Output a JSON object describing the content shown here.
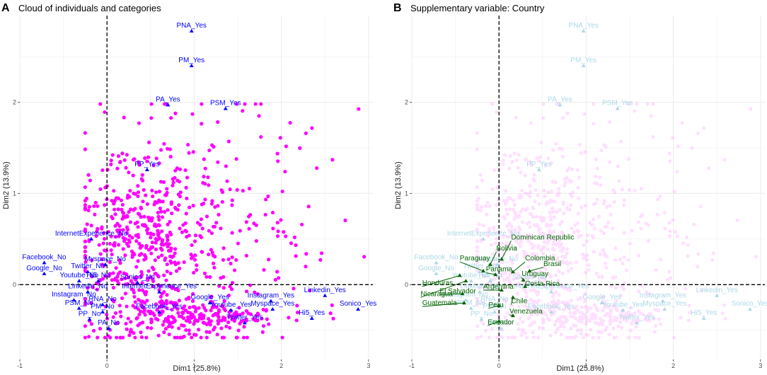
{
  "colors": {
    "individual": "#ff00ff",
    "category": "#0000ff",
    "category_faded": "#add8e6",
    "country": "#006400",
    "grid": "#ebebeb",
    "axis_line": "#000000"
  },
  "chart_data": [
    {
      "type": "scatter",
      "panel_letter": "A",
      "title": "Cloud of individuals and categories",
      "xlabel": "Dim1 (25.8%)",
      "ylabel": "Dim2 (13.9%)",
      "xlim": [
        -1.0,
        3.05
      ],
      "ylim": [
        -0.82,
        2.95
      ],
      "xticks": [
        -1,
        0,
        1,
        2,
        3
      ],
      "yticks": [
        0,
        1,
        2
      ],
      "xtick_labels": [
        "-1",
        "0",
        "1",
        "2",
        "3"
      ],
      "ytick_labels": [
        "0",
        "1",
        "2"
      ],
      "individuals_opacity": 1.0,
      "category_color": "#0000ff",
      "categories": [
        {
          "label": "PNA_Yes",
          "x": 0.97,
          "y": 2.78
        },
        {
          "label": "PM_Yes",
          "x": 0.97,
          "y": 2.4
        },
        {
          "label": "PA_Yes",
          "x": 0.7,
          "y": 1.97
        },
        {
          "label": "PSM_Yes",
          "x": 1.36,
          "y": 1.93
        },
        {
          "label": "PP_Yes",
          "x": 0.46,
          "y": 1.26
        },
        {
          "label": "InternetExperience_No",
          "x": -0.18,
          "y": 0.5
        },
        {
          "label": "Myspace_No",
          "x": -0.02,
          "y": 0.22
        },
        {
          "label": "Facebook_No",
          "x": -0.72,
          "y": 0.24
        },
        {
          "label": "Twitter_No",
          "x": -0.22,
          "y": 0.14
        },
        {
          "label": "Google_No",
          "x": -0.72,
          "y": 0.12
        },
        {
          "label": "Youtube_No",
          "x": -0.32,
          "y": 0.04
        },
        {
          "label": "Hi5_No",
          "x": -0.1,
          "y": 0.04
        },
        {
          "label": "Sonico_No",
          "x": 0.35,
          "y": 0.02
        },
        {
          "label": "Linkedin_No",
          "x": -0.22,
          "y": -0.08
        },
        {
          "label": "InternetExperience_Yes",
          "x": 0.6,
          "y": -0.08
        },
        {
          "label": "Instagram_No",
          "x": -0.38,
          "y": -0.17
        },
        {
          "label": "RNA_No",
          "x": -0.05,
          "y": -0.22
        },
        {
          "label": "PSM_No",
          "x": -0.32,
          "y": -0.26
        },
        {
          "label": "PM_No",
          "x": -0.05,
          "y": -0.3
        },
        {
          "label": "PP_No",
          "x": -0.2,
          "y": -0.38
        },
        {
          "label": "PA_No",
          "x": 0.02,
          "y": -0.48
        },
        {
          "label": "Facebook_Yes",
          "x": 0.6,
          "y": -0.3
        },
        {
          "label": "Google_Yes",
          "x": 1.18,
          "y": -0.2
        },
        {
          "label": "Youtube_Yes",
          "x": 1.42,
          "y": -0.28
        },
        {
          "label": "Twitter_Yes",
          "x": 1.58,
          "y": -0.42
        },
        {
          "label": "Instagram_Yes",
          "x": 1.88,
          "y": -0.18
        },
        {
          "label": "Myspace_Yes",
          "x": 1.9,
          "y": -0.27
        },
        {
          "label": "Hi5_Yes",
          "x": 2.35,
          "y": -0.37
        },
        {
          "label": "Linkedin_Yes",
          "x": 2.5,
          "y": -0.12
        },
        {
          "label": "Sonico_Yes",
          "x": 2.88,
          "y": -0.27
        }
      ]
    },
    {
      "type": "scatter",
      "panel_letter": "B",
      "title": "Supplementary variable: Country",
      "xlabel": "Dim1 (25.8%)",
      "ylabel": "Dim2 (13.9%)",
      "xlim": [
        -1.0,
        3.05
      ],
      "ylim": [
        -0.82,
        2.95
      ],
      "xticks": [
        -1,
        0,
        1,
        2,
        3
      ],
      "yticks": [
        0,
        1,
        2
      ],
      "xtick_labels": [
        "-1",
        "0",
        "1",
        "2",
        "3"
      ],
      "ytick_labels": [
        "0",
        "1",
        "2"
      ],
      "individuals_opacity": 0.12,
      "category_color": "#add8e6",
      "categories": [
        {
          "label": "PNA_Yes",
          "x": 0.97,
          "y": 2.78
        },
        {
          "label": "PM_Yes",
          "x": 0.97,
          "y": 2.4
        },
        {
          "label": "PA_Yes",
          "x": 0.7,
          "y": 1.97
        },
        {
          "label": "PSM_Yes",
          "x": 1.36,
          "y": 1.93
        },
        {
          "label": "PP_Yes",
          "x": 0.46,
          "y": 1.26
        },
        {
          "label": "InternetExperience_No",
          "x": -0.18,
          "y": 0.5
        },
        {
          "label": "Myspace_No",
          "x": -0.02,
          "y": 0.22
        },
        {
          "label": "Facebook_No",
          "x": -0.72,
          "y": 0.24
        },
        {
          "label": "Twitter_No",
          "x": -0.22,
          "y": 0.14
        },
        {
          "label": "Google_No",
          "x": -0.72,
          "y": 0.12
        },
        {
          "label": "Youtube_No",
          "x": -0.32,
          "y": 0.04
        },
        {
          "label": "Hi5_No",
          "x": -0.1,
          "y": 0.04
        },
        {
          "label": "Sonico_No",
          "x": 0.35,
          "y": 0.02
        },
        {
          "label": "Linkedin_No",
          "x": -0.22,
          "y": -0.08
        },
        {
          "label": "InternetExperience_Yes",
          "x": 0.6,
          "y": -0.08
        },
        {
          "label": "Instagram_No",
          "x": -0.38,
          "y": -0.17
        },
        {
          "label": "RNA_No",
          "x": -0.05,
          "y": -0.22
        },
        {
          "label": "PSM_No",
          "x": -0.32,
          "y": -0.26
        },
        {
          "label": "PM_No",
          "x": -0.05,
          "y": -0.3
        },
        {
          "label": "PP_No",
          "x": -0.2,
          "y": -0.38
        },
        {
          "label": "PA_No",
          "x": 0.02,
          "y": -0.48
        },
        {
          "label": "Facebook_Yes",
          "x": 0.6,
          "y": -0.3
        },
        {
          "label": "Google_Yes",
          "x": 1.18,
          "y": -0.2
        },
        {
          "label": "Youtube_Yes",
          "x": 1.42,
          "y": -0.28
        },
        {
          "label": "Twitter_Yes",
          "x": 1.58,
          "y": -0.42
        },
        {
          "label": "Instagram_Yes",
          "x": 1.88,
          "y": -0.18
        },
        {
          "label": "Myspace_Yes",
          "x": 1.9,
          "y": -0.27
        },
        {
          "label": "Hi5_Yes",
          "x": 2.35,
          "y": -0.37
        },
        {
          "label": "Linkedin_Yes",
          "x": 2.5,
          "y": -0.12
        },
        {
          "label": "Sonico_Yes",
          "x": 2.88,
          "y": -0.27
        }
      ],
      "supplementary": {
        "name": "Country",
        "color": "#006400",
        "points": [
          {
            "label": "Dominican Republic",
            "x": 0.03,
            "y": 0.28,
            "lx": 0.14,
            "ly": 0.48
          },
          {
            "label": "Bolivia",
            "x": -0.1,
            "y": 0.22,
            "lx": -0.03,
            "ly": 0.36
          },
          {
            "label": "Paraguay",
            "x": -0.18,
            "y": 0.15,
            "lx": -0.45,
            "ly": 0.25
          },
          {
            "label": "Colombia",
            "x": 0.16,
            "y": 0.14,
            "lx": 0.3,
            "ly": 0.25
          },
          {
            "label": "Panama",
            "x": -0.04,
            "y": 0.11,
            "lx": -0.15,
            "ly": 0.13
          },
          {
            "label": "Brasil",
            "x": 0.35,
            "y": 0.15,
            "lx": 0.51,
            "ly": 0.19
          },
          {
            "label": "Uruguay",
            "x": 0.28,
            "y": 0.05,
            "lx": 0.26,
            "ly": 0.08
          },
          {
            "label": "Honduras",
            "x": -0.45,
            "y": 0.1,
            "lx": -0.88,
            "ly": -0.02
          },
          {
            "label": "Nicaragua",
            "x": -0.38,
            "y": 0.04,
            "lx": -0.9,
            "ly": -0.14
          },
          {
            "label": "Costa Rica",
            "x": 0.3,
            "y": -0.02,
            "lx": 0.3,
            "ly": -0.03
          },
          {
            "label": "Argentina",
            "x": 0.03,
            "y": -0.06,
            "lx": -0.18,
            "ly": -0.06
          },
          {
            "label": "El Salvador",
            "x": -0.42,
            "y": -0.1,
            "lx": -0.68,
            "ly": -0.11
          },
          {
            "label": "Chile",
            "x": 0.16,
            "y": -0.14,
            "lx": 0.14,
            "ly": -0.22
          },
          {
            "label": "Peru",
            "x": 0.0,
            "y": -0.23,
            "lx": -0.12,
            "ly": -0.26
          },
          {
            "label": "Guatemala",
            "x": -0.4,
            "y": -0.2,
            "lx": -0.88,
            "ly": -0.24
          },
          {
            "label": "Venezuela",
            "x": 0.16,
            "y": -0.34,
            "lx": 0.12,
            "ly": -0.33
          },
          {
            "label": "Ecuador",
            "x": 0.0,
            "y": -0.4,
            "lx": -0.13,
            "ly": -0.45
          }
        ]
      }
    }
  ]
}
